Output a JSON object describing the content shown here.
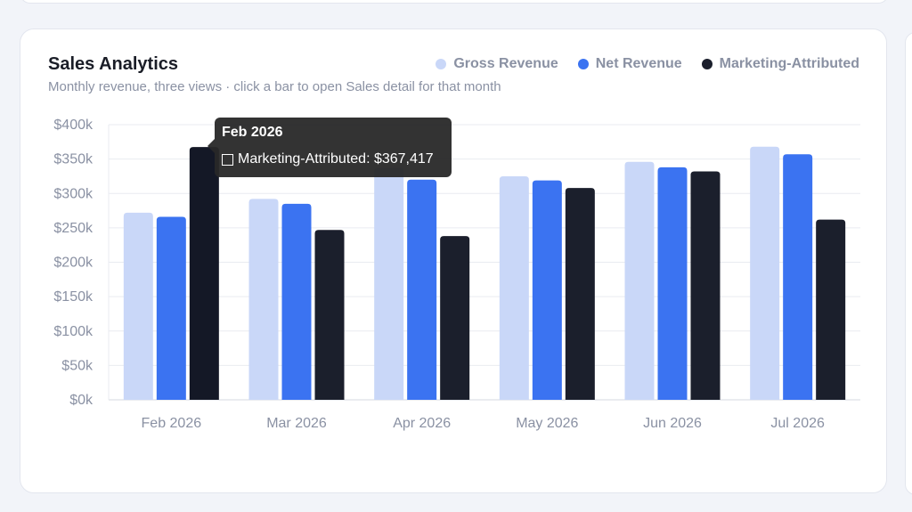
{
  "card": {
    "title": "Sales Analytics",
    "subtitle": "Monthly revenue, three views · click a bar to open Sales detail for that month"
  },
  "legend": [
    {
      "label": "Gross Revenue",
      "color": "#c9d7f8"
    },
    {
      "label": "Net Revenue",
      "color": "#3b73f1"
    },
    {
      "label": "Marketing-Attributed",
      "color": "#1b1f2c"
    }
  ],
  "tooltip": {
    "title": "Feb 2026",
    "series": "Marketing-Attributed",
    "value": "$367,417"
  },
  "chart_data": {
    "type": "bar",
    "categories": [
      "Feb 2026",
      "Mar 2026",
      "Apr 2026",
      "May 2026",
      "Jun 2026",
      "Jul 2026"
    ],
    "series": [
      {
        "name": "Gross Revenue",
        "color": "#c9d7f8",
        "values": [
          272000,
          292000,
          337000,
          325000,
          346000,
          368000
        ]
      },
      {
        "name": "Net Revenue",
        "color": "#3b73f1",
        "values": [
          266000,
          285000,
          320000,
          319000,
          338000,
          357000
        ]
      },
      {
        "name": "Marketing-Attributed",
        "color": "#1b1f2c",
        "values": [
          367417,
          247000,
          238000,
          308000,
          332000,
          262000
        ]
      }
    ],
    "ylim": [
      0,
      400000
    ],
    "yticks": [
      "$0k",
      "$50k",
      "$100k",
      "$150k",
      "$200k",
      "$250k",
      "$300k",
      "$350k",
      "$400k"
    ],
    "highlight": {
      "category_index": 0,
      "series_index": 2,
      "color": "#141826"
    },
    "grid": true,
    "legend_position": "top-right"
  }
}
